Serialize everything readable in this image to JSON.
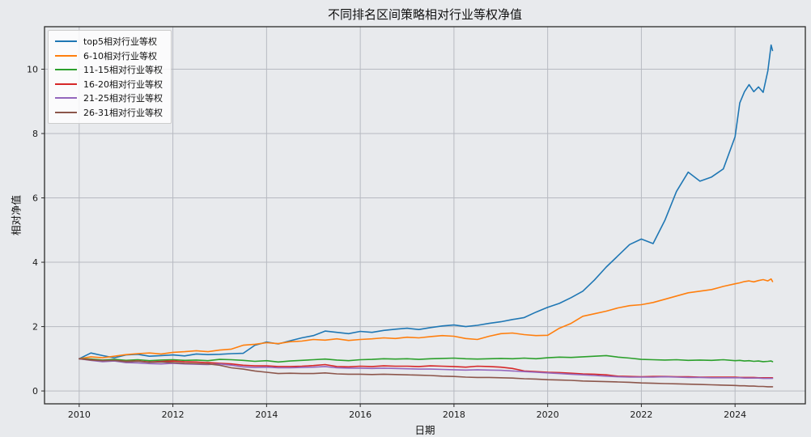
{
  "style": {
    "background": "#e8eaed",
    "grid_color": "#b7bac1",
    "spine_color": "#2b2b2b",
    "tick_color": "#1a1a1a",
    "legend_bg": "rgba(254,254,254,0.85)",
    "legend_border": "#cccccc"
  },
  "chart_data": {
    "type": "line",
    "title": "不同排名区间策略相对行业等权净值",
    "xlabel": "日期",
    "ylabel": "相对净值",
    "xlim": [
      2009.26,
      2025.5
    ],
    "ylim": [
      -0.4,
      11.32
    ],
    "x_ticks": [
      2010,
      2012,
      2014,
      2016,
      2018,
      2020,
      2022,
      2024
    ],
    "y_ticks": [
      0,
      2,
      4,
      6,
      8,
      10
    ],
    "grid": true,
    "legend_position": "upper left",
    "x": [
      2010.0,
      2010.25,
      2010.5,
      2010.75,
      2011.0,
      2011.25,
      2011.5,
      2011.75,
      2012.0,
      2012.25,
      2012.5,
      2012.75,
      2013.0,
      2013.25,
      2013.5,
      2013.75,
      2014.0,
      2014.25,
      2014.5,
      2014.75,
      2015.0,
      2015.25,
      2015.5,
      2015.75,
      2016.0,
      2016.25,
      2016.5,
      2016.75,
      2017.0,
      2017.25,
      2017.5,
      2017.75,
      2018.0,
      2018.25,
      2018.5,
      2018.75,
      2019.0,
      2019.25,
      2019.5,
      2019.75,
      2020.0,
      2020.25,
      2020.5,
      2020.75,
      2021.0,
      2021.25,
      2021.5,
      2021.75,
      2022.0,
      2022.25,
      2022.5,
      2022.75,
      2023.0,
      2023.25,
      2023.5,
      2023.75,
      2024.0,
      2024.1,
      2024.2,
      2024.3,
      2024.4,
      2024.5,
      2024.6,
      2024.7,
      2024.77,
      2024.8
    ],
    "series": [
      {
        "name": "top5相对行业等权",
        "slug": "top5",
        "color": "#1f77b4",
        "values": [
          1.0,
          1.18,
          1.1,
          1.03,
          1.12,
          1.14,
          1.08,
          1.1,
          1.12,
          1.09,
          1.15,
          1.13,
          1.14,
          1.16,
          1.17,
          1.42,
          1.52,
          1.46,
          1.56,
          1.65,
          1.72,
          1.86,
          1.82,
          1.78,
          1.85,
          1.82,
          1.88,
          1.92,
          1.95,
          1.91,
          1.97,
          2.02,
          2.05,
          2.0,
          2.04,
          2.1,
          2.15,
          2.22,
          2.28,
          2.45,
          2.6,
          2.72,
          2.9,
          3.1,
          3.45,
          3.85,
          4.2,
          4.55,
          4.72,
          4.58,
          5.3,
          6.2,
          6.8,
          6.52,
          6.65,
          6.9,
          7.9,
          8.95,
          9.3,
          9.52,
          9.3,
          9.45,
          9.28,
          9.95,
          10.75,
          10.58
        ]
      },
      {
        "name": "6-10相对行业等权",
        "slug": "6-10",
        "color": "#ff7f0e",
        "values": [
          1.0,
          1.06,
          1.03,
          1.08,
          1.13,
          1.16,
          1.18,
          1.15,
          1.2,
          1.22,
          1.25,
          1.22,
          1.27,
          1.3,
          1.42,
          1.45,
          1.5,
          1.47,
          1.53,
          1.55,
          1.6,
          1.58,
          1.62,
          1.57,
          1.6,
          1.62,
          1.65,
          1.63,
          1.67,
          1.65,
          1.69,
          1.72,
          1.7,
          1.63,
          1.6,
          1.7,
          1.78,
          1.8,
          1.75,
          1.72,
          1.73,
          1.95,
          2.1,
          2.32,
          2.4,
          2.48,
          2.58,
          2.65,
          2.68,
          2.75,
          2.85,
          2.95,
          3.05,
          3.1,
          3.15,
          3.25,
          3.33,
          3.36,
          3.4,
          3.42,
          3.39,
          3.43,
          3.46,
          3.42,
          3.48,
          3.4
        ]
      },
      {
        "name": "11-15相对行业等权",
        "slug": "11-15",
        "color": "#2ca02c",
        "values": [
          1.0,
          0.99,
          0.96,
          0.98,
          0.95,
          0.97,
          0.94,
          0.96,
          0.97,
          0.95,
          0.96,
          0.94,
          0.98,
          0.97,
          0.95,
          0.92,
          0.94,
          0.9,
          0.93,
          0.95,
          0.97,
          0.99,
          0.96,
          0.94,
          0.97,
          0.98,
          1.0,
          0.99,
          1.0,
          0.98,
          1.0,
          1.01,
          1.02,
          1.0,
          0.99,
          1.0,
          1.01,
          1.0,
          1.02,
          1.0,
          1.03,
          1.05,
          1.04,
          1.06,
          1.08,
          1.1,
          1.05,
          1.02,
          0.98,
          0.97,
          0.96,
          0.97,
          0.95,
          0.96,
          0.95,
          0.97,
          0.94,
          0.95,
          0.93,
          0.94,
          0.92,
          0.93,
          0.91,
          0.92,
          0.93,
          0.91
        ]
      },
      {
        "name": "16-20相对行业等权",
        "slug": "16-20",
        "color": "#d62728",
        "values": [
          1.0,
          0.97,
          0.94,
          0.95,
          0.92,
          0.93,
          0.9,
          0.92,
          0.93,
          0.91,
          0.9,
          0.88,
          0.86,
          0.84,
          0.8,
          0.78,
          0.78,
          0.76,
          0.76,
          0.77,
          0.79,
          0.82,
          0.76,
          0.75,
          0.77,
          0.76,
          0.78,
          0.77,
          0.77,
          0.76,
          0.78,
          0.77,
          0.76,
          0.74,
          0.77,
          0.76,
          0.74,
          0.7,
          0.62,
          0.6,
          0.58,
          0.57,
          0.55,
          0.53,
          0.52,
          0.5,
          0.46,
          0.45,
          0.44,
          0.45,
          0.45,
          0.44,
          0.44,
          0.43,
          0.43,
          0.43,
          0.43,
          0.42,
          0.42,
          0.42,
          0.42,
          0.41,
          0.41,
          0.41,
          0.41,
          0.41
        ]
      },
      {
        "name": "21-25相对行业等权",
        "slug": "21-25",
        "color": "#9467bd",
        "values": [
          1.0,
          0.95,
          0.91,
          0.93,
          0.88,
          0.87,
          0.85,
          0.84,
          0.86,
          0.84,
          0.83,
          0.82,
          0.84,
          0.8,
          0.75,
          0.73,
          0.74,
          0.72,
          0.72,
          0.73,
          0.74,
          0.76,
          0.72,
          0.71,
          0.71,
          0.7,
          0.71,
          0.7,
          0.69,
          0.68,
          0.68,
          0.67,
          0.66,
          0.65,
          0.66,
          0.65,
          0.64,
          0.62,
          0.6,
          0.58,
          0.56,
          0.54,
          0.52,
          0.5,
          0.48,
          0.46,
          0.44,
          0.43,
          0.43,
          0.43,
          0.44,
          0.43,
          0.42,
          0.42,
          0.41,
          0.41,
          0.41,
          0.41,
          0.4,
          0.4,
          0.4,
          0.4,
          0.39,
          0.39,
          0.39,
          0.39
        ]
      },
      {
        "name": "26-31相对行业等权",
        "slug": "26-31",
        "color": "#8c564b",
        "values": [
          1.0,
          0.96,
          0.94,
          0.95,
          0.91,
          0.92,
          0.89,
          0.9,
          0.88,
          0.86,
          0.85,
          0.84,
          0.8,
          0.72,
          0.68,
          0.62,
          0.58,
          0.54,
          0.55,
          0.54,
          0.54,
          0.56,
          0.53,
          0.52,
          0.52,
          0.51,
          0.52,
          0.51,
          0.5,
          0.49,
          0.48,
          0.46,
          0.45,
          0.43,
          0.42,
          0.42,
          0.41,
          0.4,
          0.38,
          0.37,
          0.35,
          0.34,
          0.33,
          0.31,
          0.3,
          0.29,
          0.28,
          0.27,
          0.25,
          0.24,
          0.23,
          0.22,
          0.21,
          0.2,
          0.19,
          0.18,
          0.17,
          0.16,
          0.16,
          0.15,
          0.15,
          0.14,
          0.14,
          0.13,
          0.13,
          0.13
        ]
      }
    ]
  }
}
